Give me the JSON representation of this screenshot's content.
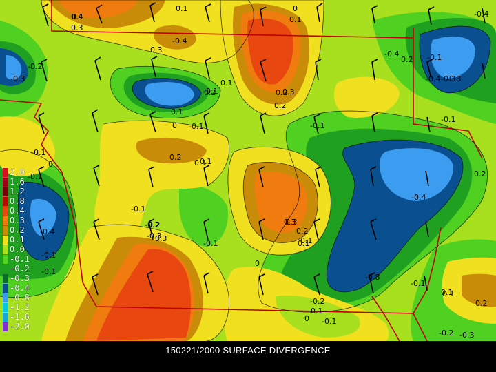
{
  "caption": "150221/2000 SURFACE DIVERGENCE",
  "legend": [
    {
      "label": "2.0",
      "color": "#d81020"
    },
    {
      "label": "1.6",
      "color": "#a00018"
    },
    {
      "label": "1.2",
      "color": "#780008"
    },
    {
      "label": "0.8",
      "color": "#b80800"
    },
    {
      "label": "0.4",
      "color": "#e84810"
    },
    {
      "label": "0.3",
      "color": "#f07c10"
    },
    {
      "label": "0.2",
      "color": "#c88c08"
    },
    {
      "label": "0.1",
      "color": "#f0e020"
    },
    {
      "label": "0.0",
      "color": "#a8e020"
    },
    {
      "label": "-0.1",
      "color": "#50d020"
    },
    {
      "label": "-0.2",
      "color": "#20a020"
    },
    {
      "label": "-0.3",
      "color": "#0a6e2a"
    },
    {
      "label": "-0.4",
      "color": "#0a4f90"
    },
    {
      "label": "-0.8",
      "color": "#3c9cf0"
    },
    {
      "label": "-1.2",
      "color": "#08c8e0"
    },
    {
      "label": "-1.6",
      "color": "#18a8d8"
    },
    {
      "label": "-2.0",
      "color": "#8030d0"
    }
  ],
  "contour_labels": [
    "0.4",
    "0.3",
    "0.1",
    "0",
    "0.1",
    "-0.4",
    "-0.2",
    "-0.3",
    "-0.4",
    "0.2",
    "0.3",
    "-0.4",
    "0.2",
    "0.1",
    "0.3",
    "0.2",
    "-0.3",
    "0.2",
    "0.1",
    "0",
    "-0.1",
    "-0.1",
    "0",
    "0.1",
    "-0.1",
    "0.2",
    "0.1",
    "-0.1",
    "-0.4",
    "-0.1",
    "-0.1",
    "0.3",
    "0.2",
    "0.1",
    "-0.3",
    "-0.2",
    "-0.1",
    "0.2",
    "0.3",
    "-0.4",
    "-0.1",
    "0",
    "-0.8",
    "-0.2",
    "-0.1",
    "0",
    "-0.1",
    "-0.1",
    "0.1",
    "0.2",
    "-0.2",
    "-0.3",
    "-0.1",
    "-0.4",
    "0.2",
    "0.3",
    "0.1",
    "-0.3",
    "-0.1",
    "-0.1",
    "0.1",
    "0.1"
  ]
}
